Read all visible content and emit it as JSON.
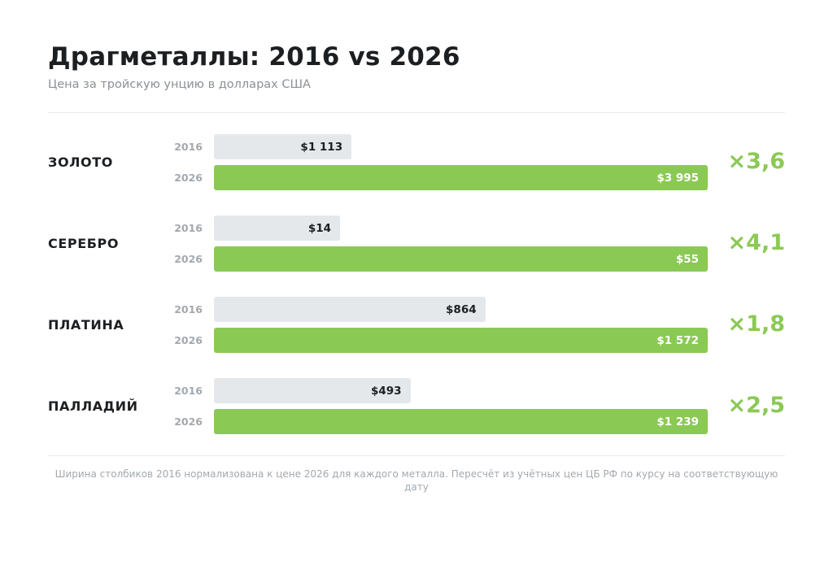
{
  "header": {
    "title": "Драгметаллы: 2016 vs 2026",
    "subtitle": "Цена за тройскую унцию в долларах США"
  },
  "footnote": "Ширина столбиков 2016 нормализована к цене 2026 для каждого металла. Пересчёт из учётных цен ЦБ РФ по курсу на соответствующую дату",
  "colors": {
    "bar_2016": "#e5e8ea",
    "bar_2026": "#8bc955",
    "ratio": "#8bc955"
  },
  "chart_data": {
    "type": "bar",
    "orientation": "horizontal",
    "normalization": "per-category",
    "title": "Драгметаллы: 2016 vs 2026",
    "subtitle": "Цена за тройскую унцию в долларах США",
    "series_names": [
      "2016",
      "2026"
    ],
    "categories": [
      "ЗОЛОТО",
      "СЕРЕБРО",
      "ПЛАТИНА",
      "ПАЛЛАДИЙ"
    ],
    "rows": [
      {
        "name": "ЗОЛОТО",
        "y2016": "2016",
        "y2026": "2026",
        "v2016": 1113,
        "v2026": 3995,
        "l2016": "$1 113",
        "l2026": "$3 995",
        "ratio": "×3,6"
      },
      {
        "name": "СЕРЕБРО",
        "y2016": "2016",
        "y2026": "2026",
        "v2016": 14,
        "v2026": 55,
        "l2016": "$14",
        "l2026": "$55",
        "ratio": "×4,1"
      },
      {
        "name": "ПЛАТИНА",
        "y2016": "2016",
        "y2026": "2026",
        "v2016": 864,
        "v2026": 1572,
        "l2016": "$864",
        "l2026": "$1 572",
        "ratio": "×1,8"
      },
      {
        "name": "ПАЛЛАДИЙ",
        "y2016": "2016",
        "y2026": "2026",
        "v2016": 493,
        "v2026": 1239,
        "l2016": "$493",
        "l2026": "$1 239",
        "ratio": "×2,5"
      }
    ],
    "legend": "none",
    "grid": false
  }
}
